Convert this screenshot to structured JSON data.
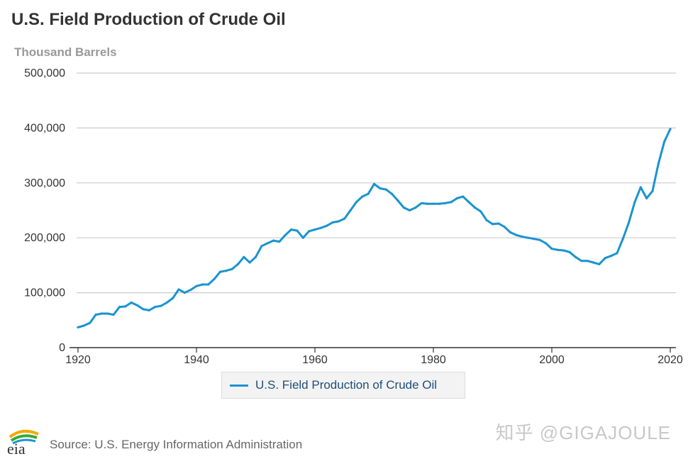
{
  "header": {
    "title": "U.S. Field Production of Crude Oil",
    "unit_label": "Thousand Barrels"
  },
  "legend": {
    "label": "U.S. Field Production of Crude Oil",
    "color": "#1a94d0"
  },
  "footer": {
    "source": "Source: U.S. Energy Information Administration",
    "logo_text": "eia",
    "watermark": "知乎 @GIGAJOULE"
  },
  "chart_data": {
    "type": "line",
    "title": "U.S. Field Production of Crude Oil",
    "ylabel": "Thousand Barrels",
    "xlabel": "",
    "xlim": [
      1920,
      2020
    ],
    "ylim": [
      0,
      500000
    ],
    "x_ticks": [
      "1920",
      "1940",
      "1960",
      "1980",
      "2000",
      "2020"
    ],
    "x_tick_values": [
      1920,
      1940,
      1960,
      1980,
      2000,
      2020
    ],
    "y_ticks": [
      "0",
      "100,000",
      "200,000",
      "300,000",
      "400,000",
      "500,000"
    ],
    "y_tick_values": [
      0,
      100000,
      200000,
      300000,
      400000,
      500000
    ],
    "grid": true,
    "legend_position": "bottom-center",
    "series": [
      {
        "name": "U.S. Field Production of Crude Oil",
        "color": "#1a94d0",
        "x": [
          1920,
          1921,
          1922,
          1923,
          1924,
          1925,
          1926,
          1927,
          1928,
          1929,
          1930,
          1931,
          1932,
          1933,
          1934,
          1935,
          1936,
          1937,
          1938,
          1939,
          1940,
          1941,
          1942,
          1943,
          1944,
          1945,
          1946,
          1947,
          1948,
          1949,
          1950,
          1951,
          1952,
          1953,
          1954,
          1955,
          1956,
          1957,
          1958,
          1959,
          1960,
          1961,
          1962,
          1963,
          1964,
          1965,
          1966,
          1967,
          1968,
          1969,
          1970,
          1971,
          1972,
          1973,
          1974,
          1975,
          1976,
          1977,
          1978,
          1979,
          1980,
          1981,
          1982,
          1983,
          1984,
          1985,
          1986,
          1987,
          1988,
          1989,
          1990,
          1991,
          1992,
          1993,
          1994,
          1995,
          1996,
          1997,
          1998,
          1999,
          2000,
          2001,
          2002,
          2003,
          2004,
          2005,
          2006,
          2007,
          2008,
          2009,
          2010,
          2011,
          2012,
          2013,
          2014,
          2015,
          2016,
          2017,
          2018,
          2019,
          2020
        ],
        "values": [
          37000,
          40000,
          45000,
          60000,
          62000,
          62000,
          60000,
          74000,
          75000,
          82000,
          77000,
          70000,
          68000,
          74000,
          76000,
          82000,
          90000,
          106000,
          100000,
          105000,
          112000,
          115000,
          115000,
          125000,
          138000,
          140000,
          143000,
          152000,
          165000,
          155000,
          165000,
          185000,
          190000,
          195000,
          193000,
          205000,
          215000,
          213000,
          200000,
          212000,
          215000,
          218000,
          222000,
          228000,
          230000,
          235000,
          250000,
          265000,
          275000,
          280000,
          298000,
          290000,
          288000,
          280000,
          268000,
          255000,
          250000,
          255000,
          263000,
          262000,
          262000,
          262000,
          263000,
          265000,
          272000,
          275000,
          265000,
          255000,
          248000,
          232000,
          225000,
          226000,
          220000,
          210000,
          205000,
          202000,
          200000,
          198000,
          196000,
          190000,
          180000,
          178000,
          177000,
          174000,
          165000,
          158000,
          158000,
          155000,
          152000,
          163000,
          167000,
          172000,
          198000,
          228000,
          265000,
          292000,
          272000,
          285000,
          335000,
          375000,
          398000
        ]
      }
    ]
  }
}
